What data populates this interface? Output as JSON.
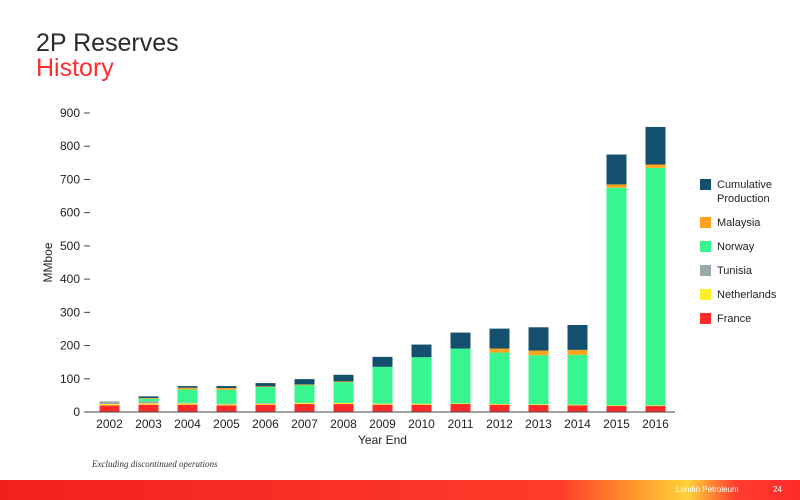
{
  "header": {
    "title": "2P Reserves",
    "subtitle": "History"
  },
  "chart_data": {
    "type": "bar",
    "stacked": true,
    "xlabel": "Year End",
    "ylabel": "MMboe",
    "ylim": [
      0,
      900
    ],
    "yticks": [
      0,
      100,
      200,
      300,
      400,
      500,
      600,
      700,
      800,
      900
    ],
    "categories": [
      "2002",
      "2003",
      "2004",
      "2005",
      "2006",
      "2007",
      "2008",
      "2009",
      "2010",
      "2011",
      "2012",
      "2013",
      "2014",
      "2015",
      "2016"
    ],
    "series": [
      {
        "name": "France",
        "color": "#ff2a2a",
        "values": [
          20,
          22,
          22,
          20,
          22,
          24,
          24,
          22,
          22,
          24,
          22,
          21,
          20,
          18,
          18
        ]
      },
      {
        "name": "Netherlands",
        "color": "#ffef2a",
        "values": [
          4,
          4,
          4,
          3,
          3,
          3,
          3,
          3,
          3,
          2,
          2,
          2,
          2,
          2,
          2
        ]
      },
      {
        "name": "Tunisia",
        "color": "#9aa9a9",
        "values": [
          8,
          6,
          2,
          2,
          2,
          1,
          1,
          1,
          0,
          0,
          0,
          0,
          0,
          0,
          0
        ]
      },
      {
        "name": "Norway",
        "color": "#39f58f",
        "values": [
          0,
          8,
          40,
          42,
          48,
          53,
          62,
          110,
          140,
          165,
          155,
          148,
          150,
          655,
          715
        ]
      },
      {
        "name": "Malaysia",
        "color": "#ffa31f",
        "values": [
          0,
          2,
          5,
          5,
          2,
          2,
          2,
          0,
          0,
          0,
          12,
          14,
          15,
          10,
          10
        ]
      },
      {
        "name": "Cumulative Production",
        "color": "#14506e",
        "values": [
          0,
          5,
          5,
          6,
          10,
          16,
          20,
          30,
          38,
          48,
          60,
          70,
          75,
          90,
          113
        ]
      }
    ],
    "legend_order": [
      "Cumulative Production",
      "Malaysia",
      "Norway",
      "Tunisia",
      "Netherlands",
      "France"
    ],
    "legend_position": "right",
    "grid": false
  },
  "footnote": "Excluding discontinued operations",
  "footer": {
    "brand": "Lundin Petroleum",
    "page": "24"
  },
  "side_id": "KR/116/4 ai/3 10.17",
  "colors": {
    "accent": "#ff2d2d",
    "footer": "#f21f1f"
  }
}
